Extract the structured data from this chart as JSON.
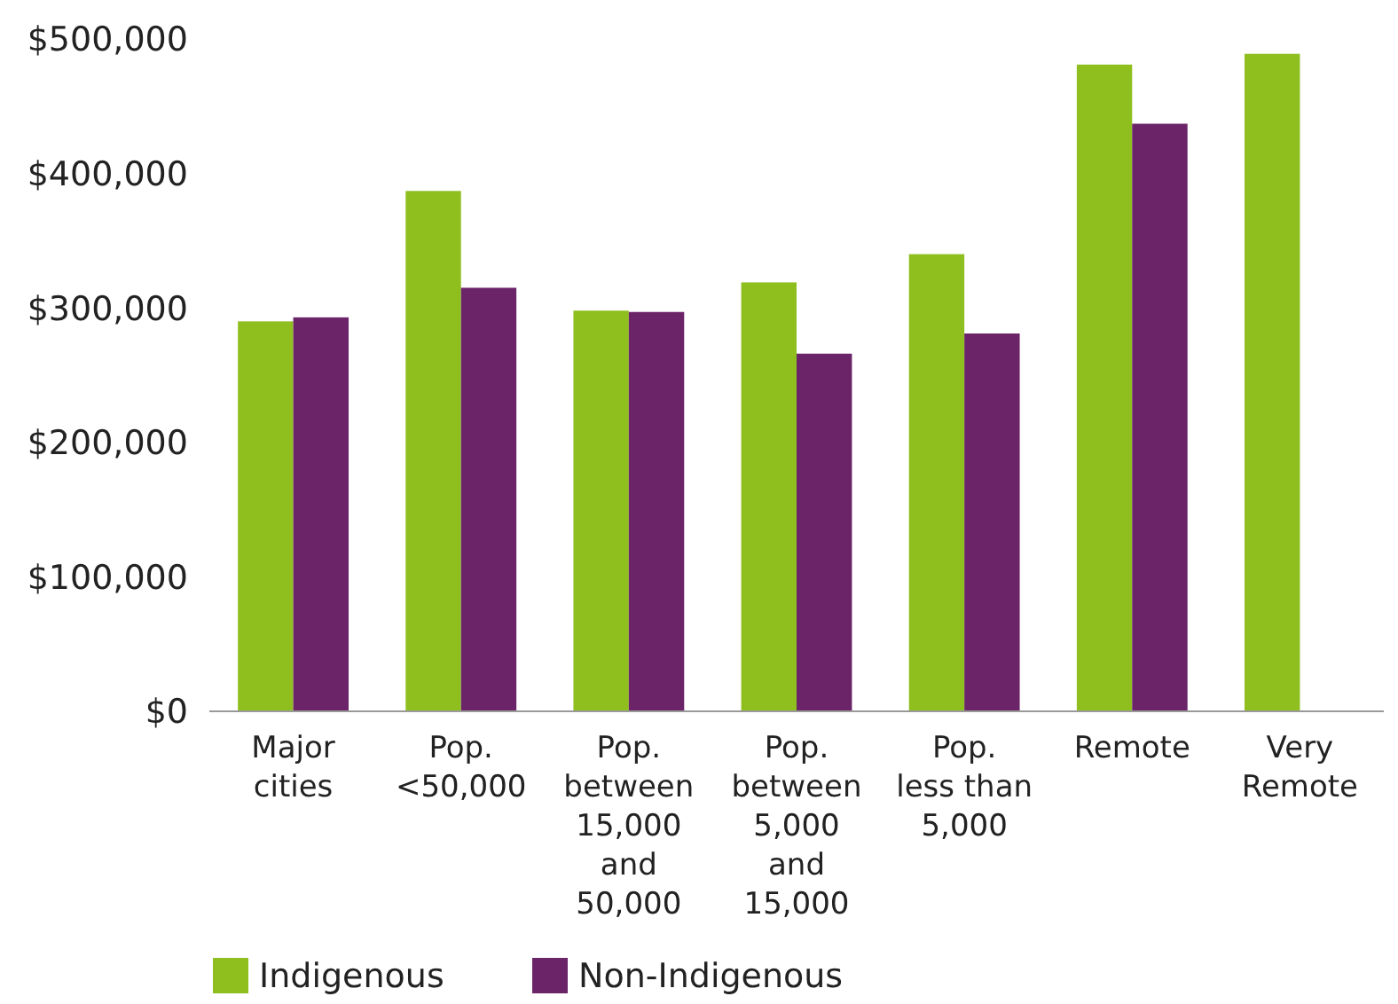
{
  "chart_data": {
    "type": "bar",
    "categories": [
      "Major\ncities",
      "Pop.\n<50,000",
      "Pop.\nbetween\n15,000\nand\n50,000",
      "Pop.\nbetween\n5,000\nand\n15,000",
      "Pop.\nless than\n5,000",
      "Remote",
      "Very\nRemote"
    ],
    "series": [
      {
        "name": "Indigenous",
        "color": "#8fbf1f",
        "values": [
          290000,
          387000,
          298000,
          319000,
          340000,
          481000,
          489000
        ]
      },
      {
        "name": "Non-Indigenous",
        "color": "#6b2468",
        "values": [
          293000,
          315000,
          297000,
          266000,
          281000,
          437000,
          null
        ]
      }
    ],
    "ylim": [
      0,
      500000
    ],
    "yticks": [
      {
        "value": 0,
        "label": "$0"
      },
      {
        "value": 100000,
        "label": "$100,000"
      },
      {
        "value": 200000,
        "label": "$200,000"
      },
      {
        "value": 300000,
        "label": "$300,000"
      },
      {
        "value": 400000,
        "label": "$400,000"
      },
      {
        "value": 500000,
        "label": "$500,000"
      }
    ],
    "grid": false,
    "legend": "bottom"
  }
}
